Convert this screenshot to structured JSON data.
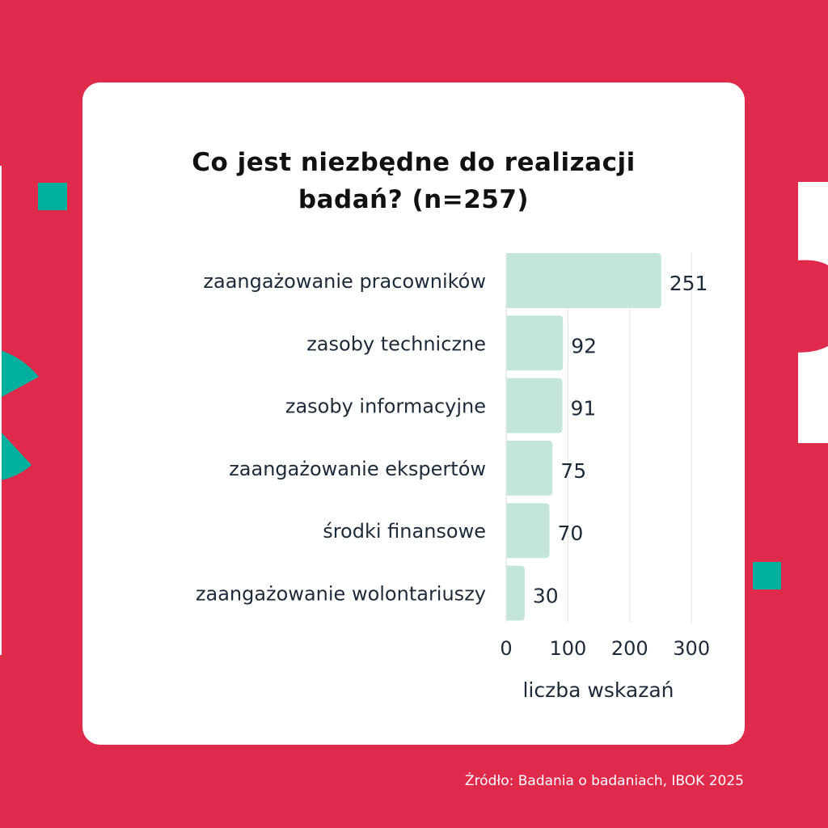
{
  "colors": {
    "background": "#E02A4B",
    "accent": "#00B09E",
    "bar": "#C4E6D9",
    "card": "#FFFFFF",
    "text": "#1E2A38",
    "grid": "#E6E7EC"
  },
  "source": "Źródło: Badania o badaniach, IBOK 2025",
  "chart_data": {
    "type": "bar",
    "orientation": "horizontal",
    "title_lines": [
      "Co jest niezbędne do realizacji",
      "badań? (n=257)"
    ],
    "categories": [
      "zaangażowanie pracowników",
      "zasoby techniczne",
      "zasoby informacyjne",
      "zaangażowanie ekspertów",
      "środki finansowe",
      "zaangażowanie wolontariuszy"
    ],
    "values": [
      251,
      92,
      91,
      75,
      70,
      30
    ],
    "xlabel": "liczba wskazań",
    "xlim": [
      0,
      330
    ],
    "xticks": [
      0,
      100,
      200,
      300
    ],
    "grid": true,
    "data_labels": true
  }
}
